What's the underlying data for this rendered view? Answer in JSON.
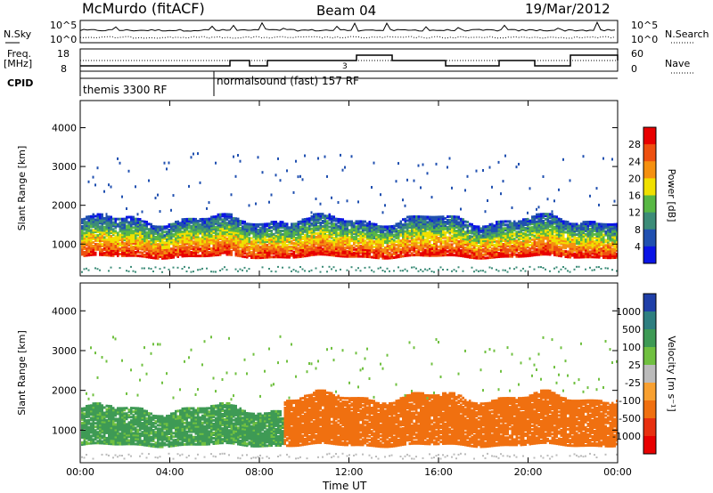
{
  "header": {
    "station": "McMurdo (fitACF)",
    "beam": "Beam 04",
    "date": "19/Mar/2012"
  },
  "top_panels": {
    "nsky_label": "N.Sky",
    "nsky_ticks": [
      "10^5",
      "10^0"
    ],
    "nsearch_label": "N.Search",
    "nsearch_ticks": [
      "10^5",
      "10^0"
    ],
    "freq_label_1": "Freq.",
    "freq_label_2": "[MHz]",
    "freq_ticks": [
      "18",
      "8"
    ],
    "nave_label": "Nave",
    "nave_ticks": [
      "60",
      "0"
    ],
    "cpid_label": "CPID",
    "cpid_segments": [
      {
        "label": "themis 3300 RF",
        "start_hour": 0,
        "end_hour": 6
      },
      {
        "label": "normalsound (fast) 157 RF",
        "start_hour": 6,
        "end_hour": 24
      }
    ],
    "nave_marker": "3"
  },
  "chart_data": [
    {
      "type": "heatmap",
      "title": "Power",
      "xlabel": "",
      "ylabel": "Slant Range [km]",
      "x_ticks": [
        "00:00",
        "04:00",
        "08:00",
        "12:00",
        "16:00",
        "20:00",
        "00:00"
      ],
      "x_range_hours": [
        0,
        24
      ],
      "y_ticks": [
        1000,
        2000,
        3000,
        4000
      ],
      "ylim": [
        180,
        4700
      ],
      "colorbar_label": "Power [dB]",
      "colorbar_ticks": [
        4,
        8,
        12,
        16,
        20,
        24,
        28
      ],
      "colorbar_colors": [
        "#0a14e6",
        "#2050b0",
        "#3c8c78",
        "#58b844",
        "#f0e000",
        "#f59010",
        "#ee5010",
        "#e80000"
      ],
      "bands": [
        {
          "hours": [
            0,
            24
          ],
          "range_km": [
            650,
            1600
          ],
          "level_db": 14
        }
      ]
    },
    {
      "type": "heatmap",
      "title": "Velocity",
      "xlabel": "Time UT",
      "ylabel": "Slant Range [km]",
      "x_ticks": [
        "00:00",
        "04:00",
        "08:00",
        "12:00",
        "16:00",
        "20:00",
        "00:00"
      ],
      "x_range_hours": [
        0,
        24
      ],
      "y_ticks": [
        1000,
        2000,
        3000,
        4000
      ],
      "ylim": [
        180,
        4700
      ],
      "colorbar_label": "Velocity [m s⁻¹]",
      "colorbar_ticks": [
        1000,
        500,
        100,
        25,
        -25,
        -100,
        -500,
        -1000
      ],
      "colorbar_colors": [
        "#1f3fa8",
        "#2e7f80",
        "#3e9a55",
        "#70c040",
        "#bbbbbb",
        "#f8a030",
        "#f07010",
        "#e83010",
        "#e80000"
      ],
      "bands": [
        {
          "hours": [
            0,
            9
          ],
          "range_km": [
            600,
            1500
          ],
          "velocity_m_s": 150
        },
        {
          "hours": [
            9,
            24
          ],
          "range_km": [
            600,
            1800
          ],
          "velocity_m_s": -200
        }
      ]
    }
  ]
}
